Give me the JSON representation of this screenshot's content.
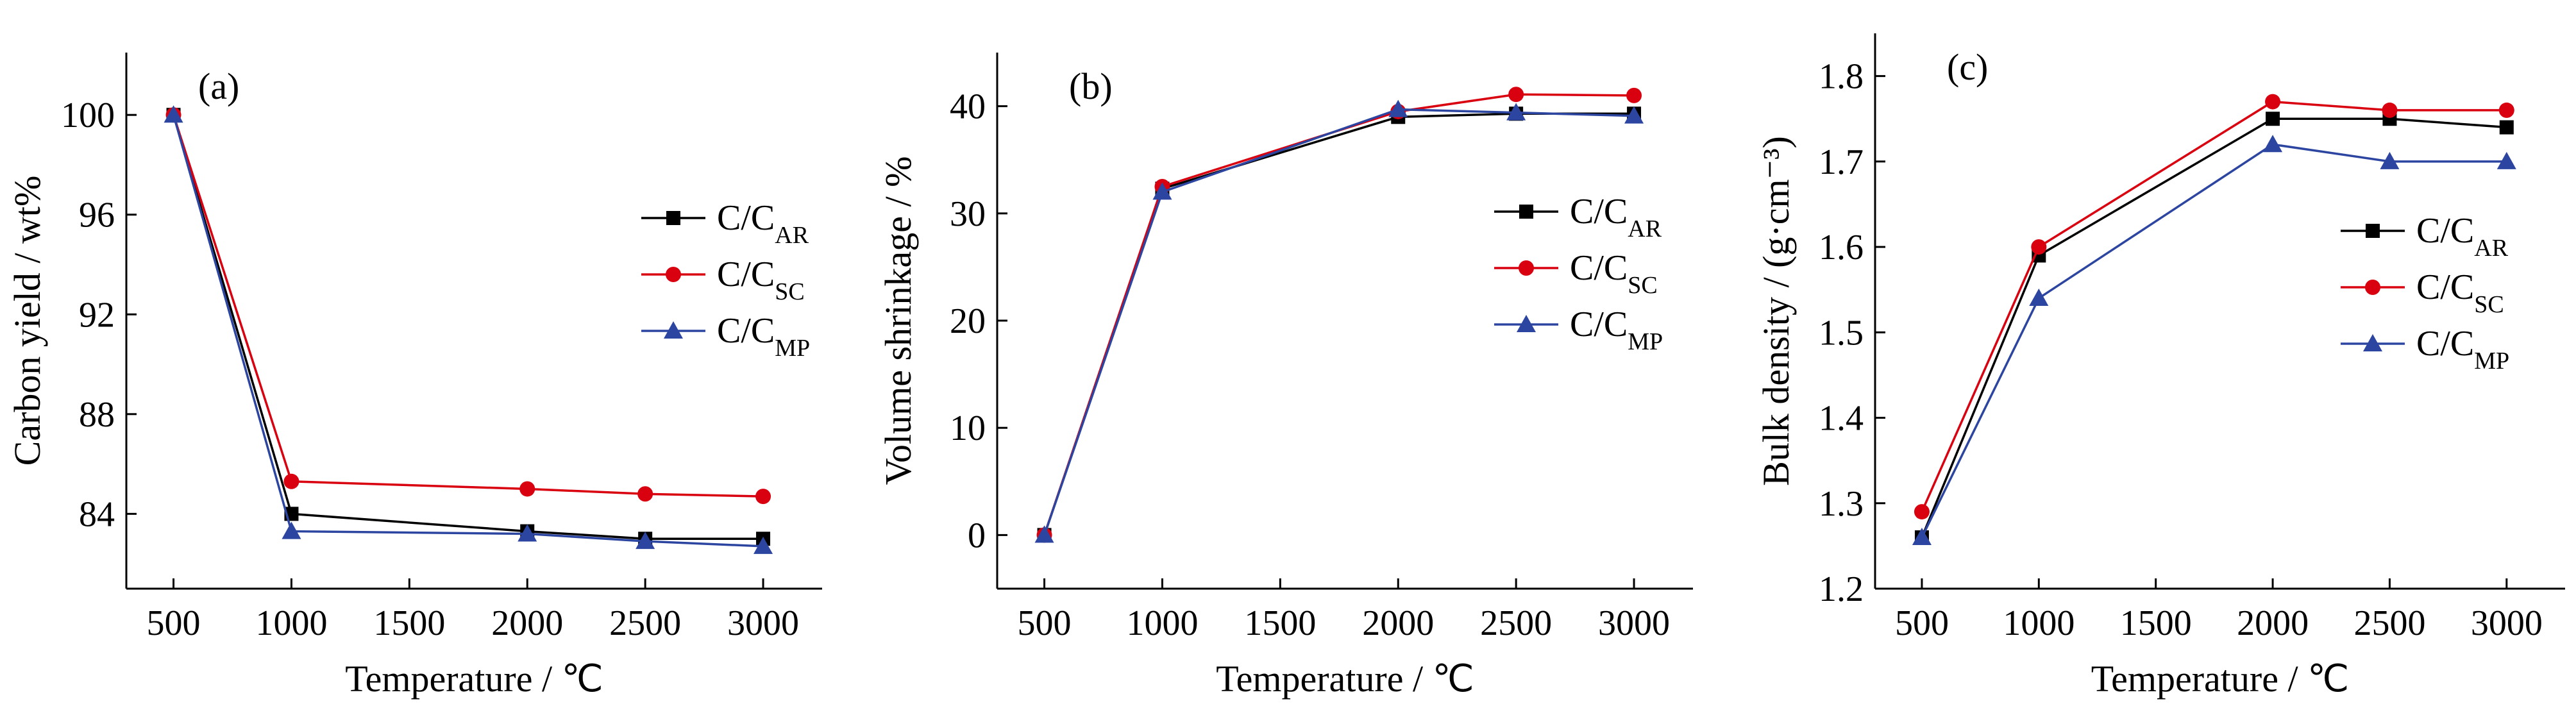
{
  "colors": {
    "C/C_AR": "#000000",
    "C/C_SC": "#d9000f",
    "C/C_MP": "#2c45a0"
  },
  "chart_data": [
    {
      "type": "line",
      "panel_label": "(a)",
      "xlabel": "Temperature / ℃",
      "ylabel": "Carbon yield / wt%",
      "x": [
        500,
        1000,
        2000,
        2500,
        3000
      ],
      "xticks": [
        500,
        1000,
        1500,
        2000,
        2500,
        3000
      ],
      "yticks": [
        84,
        88,
        92,
        96,
        100
      ],
      "xlim": [
        300,
        3250
      ],
      "ylim": [
        81.0,
        102.5
      ],
      "legend_position": "center-right",
      "series": [
        {
          "name": "C/C",
          "name_sub": "AR",
          "key": "C/C_AR",
          "marker": "square",
          "values": [
            100,
            84.0,
            83.3,
            83.0,
            83.0
          ]
        },
        {
          "name": "C/C",
          "name_sub": "SC",
          "key": "C/C_SC",
          "marker": "circle",
          "values": [
            100,
            85.3,
            85.0,
            84.8,
            84.7
          ]
        },
        {
          "name": "C/C",
          "name_sub": "MP",
          "key": "C/C_MP",
          "marker": "triangle",
          "values": [
            100,
            83.3,
            83.2,
            82.9,
            82.7
          ]
        }
      ]
    },
    {
      "type": "line",
      "panel_label": "(b)",
      "xlabel": "Temperature / ℃",
      "ylabel": "Volume shrinkage / %",
      "x": [
        500,
        1000,
        2000,
        2500,
        3000
      ],
      "xticks": [
        500,
        1000,
        1500,
        2000,
        2500,
        3000
      ],
      "yticks": [
        0,
        10,
        20,
        30,
        40
      ],
      "xlim": [
        300,
        3250
      ],
      "ylim": [
        -5,
        45
      ],
      "legend_position": "center-right",
      "series": [
        {
          "name": "C/C",
          "name_sub": "AR",
          "key": "C/C_AR",
          "marker": "square",
          "values": [
            0,
            32.3,
            39.0,
            39.3,
            39.3
          ]
        },
        {
          "name": "C/C",
          "name_sub": "SC",
          "key": "C/C_SC",
          "marker": "circle",
          "values": [
            0,
            32.5,
            39.5,
            41.1,
            41.0
          ]
        },
        {
          "name": "C/C",
          "name_sub": "MP",
          "key": "C/C_MP",
          "marker": "triangle",
          "values": [
            0,
            32.0,
            39.7,
            39.4,
            39.1
          ]
        }
      ]
    },
    {
      "type": "line",
      "panel_label": "(c)",
      "xlabel": "Temperature / ℃",
      "ylabel": "Bulk density / (g·cm⁻³)",
      "x": [
        500,
        1000,
        2000,
        2500,
        3000
      ],
      "xticks": [
        500,
        1000,
        1500,
        2000,
        2500,
        3000
      ],
      "yticks": [
        1.2,
        1.3,
        1.4,
        1.5,
        1.6,
        1.7,
        1.8
      ],
      "xlim": [
        300,
        3250
      ],
      "ylim": [
        1.2,
        1.85
      ],
      "legend_position": "center-right",
      "series": [
        {
          "name": "C/C",
          "name_sub": "AR",
          "key": "C/C_AR",
          "marker": "square",
          "values": [
            1.26,
            1.59,
            1.75,
            1.75,
            1.74
          ]
        },
        {
          "name": "C/C",
          "name_sub": "SC",
          "key": "C/C_SC",
          "marker": "circle",
          "values": [
            1.29,
            1.6,
            1.77,
            1.76,
            1.76
          ]
        },
        {
          "name": "C/C",
          "name_sub": "MP",
          "key": "C/C_MP",
          "marker": "triangle",
          "values": [
            1.26,
            1.54,
            1.72,
            1.7,
            1.7
          ]
        }
      ]
    }
  ]
}
